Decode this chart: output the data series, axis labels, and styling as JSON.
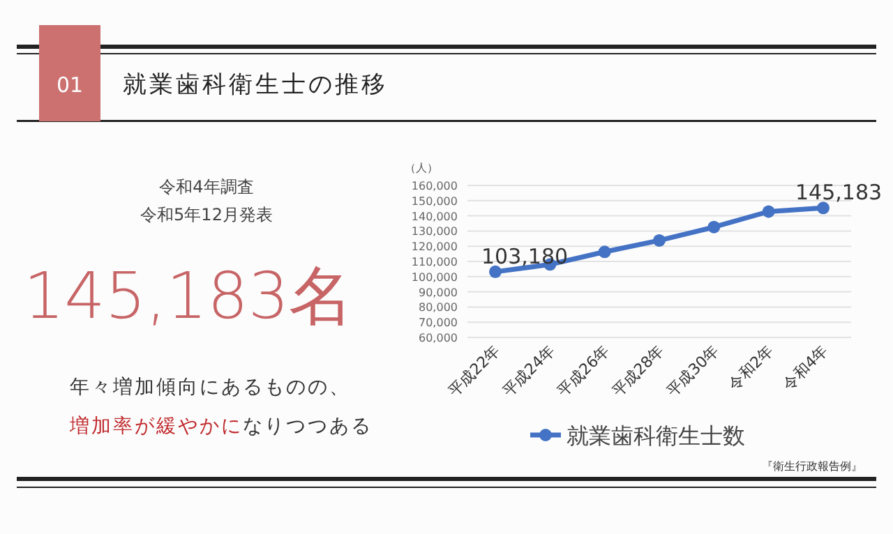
{
  "chart_data": {
    "type": "line",
    "title": "就業歯科衛生士の推移",
    "ylabel": "（人）",
    "categories": [
      "平成22年",
      "平成24年",
      "平成26年",
      "平成28年",
      "平成30年",
      "令和2年",
      "令和4年"
    ],
    "series": [
      {
        "name": "就業歯科衛生士数",
        "color": "#4472c4",
        "values": [
          103180,
          108000,
          116300,
          123800,
          132600,
          142800,
          145183
        ],
        "value_labels": [
          "103,180",
          null,
          null,
          null,
          null,
          null,
          "145,183"
        ]
      }
    ],
    "ylim": [
      60000,
      160000
    ],
    "yticks": [
      {
        "value": 60000,
        "label": "60,000"
      },
      {
        "value": 70000,
        "label": "70,000"
      },
      {
        "value": 80000,
        "label": "80,000"
      },
      {
        "value": 90000,
        "label": "90,000"
      },
      {
        "value": 100000,
        "label": "100,000"
      },
      {
        "value": 110000,
        "label": "110,000"
      },
      {
        "value": 120000,
        "label": "120,000"
      },
      {
        "value": 130000,
        "label": "130,000"
      },
      {
        "value": 140000,
        "label": "140,000"
      },
      {
        "value": 150000,
        "label": "150,000"
      },
      {
        "value": 160000,
        "label": "160,000"
      }
    ],
    "grid": "y",
    "legend": "bottom",
    "marker": "circle",
    "line_style": "solid",
    "annotations": [
      "01",
      "令和4年調査",
      "令和5年12月発表",
      "145,183名",
      "年々増加傾向にあるものの、",
      "増加率が緩やかに",
      "なりつつある",
      "『衛生行政報告例』"
    ]
  }
}
